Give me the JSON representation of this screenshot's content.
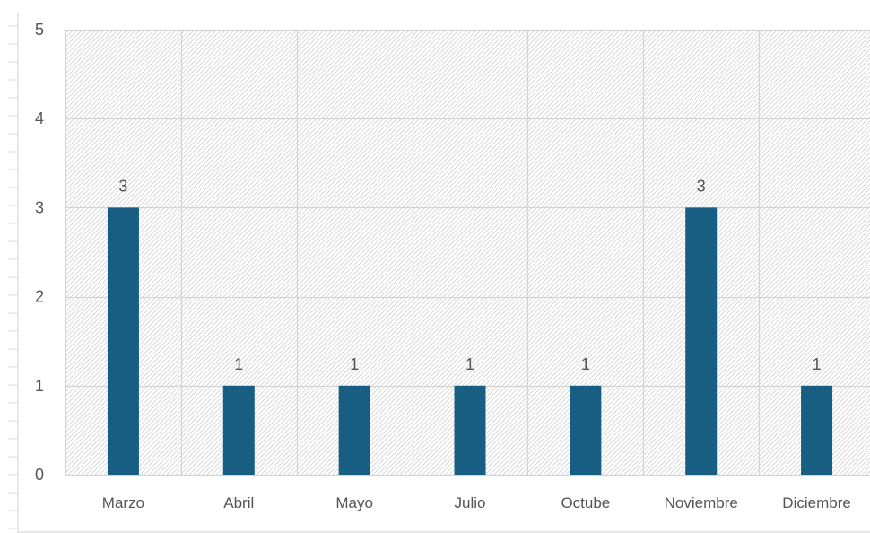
{
  "chart_data": {
    "type": "bar",
    "title": "",
    "xlabel": "",
    "ylabel": "",
    "categories": [
      "Marzo",
      "Abril",
      "Mayo",
      "Julio",
      "Octube",
      "Noviembre",
      "Diciembre"
    ],
    "series": [
      {
        "values": [
          3,
          1,
          1,
          1,
          1,
          3,
          1
        ]
      }
    ],
    "data_labels": [
      "3",
      "1",
      "1",
      "1",
      "1",
      "3",
      "1"
    ],
    "ylim": [
      0,
      5
    ],
    "yticks": [
      "0",
      "1",
      "2",
      "3",
      "4",
      "5"
    ],
    "grid": true,
    "legend": "none",
    "colors": {
      "bar": "#175e82",
      "grid": "#d4d4d4",
      "hatch": "#d6d6d6",
      "text": "#555555"
    }
  }
}
